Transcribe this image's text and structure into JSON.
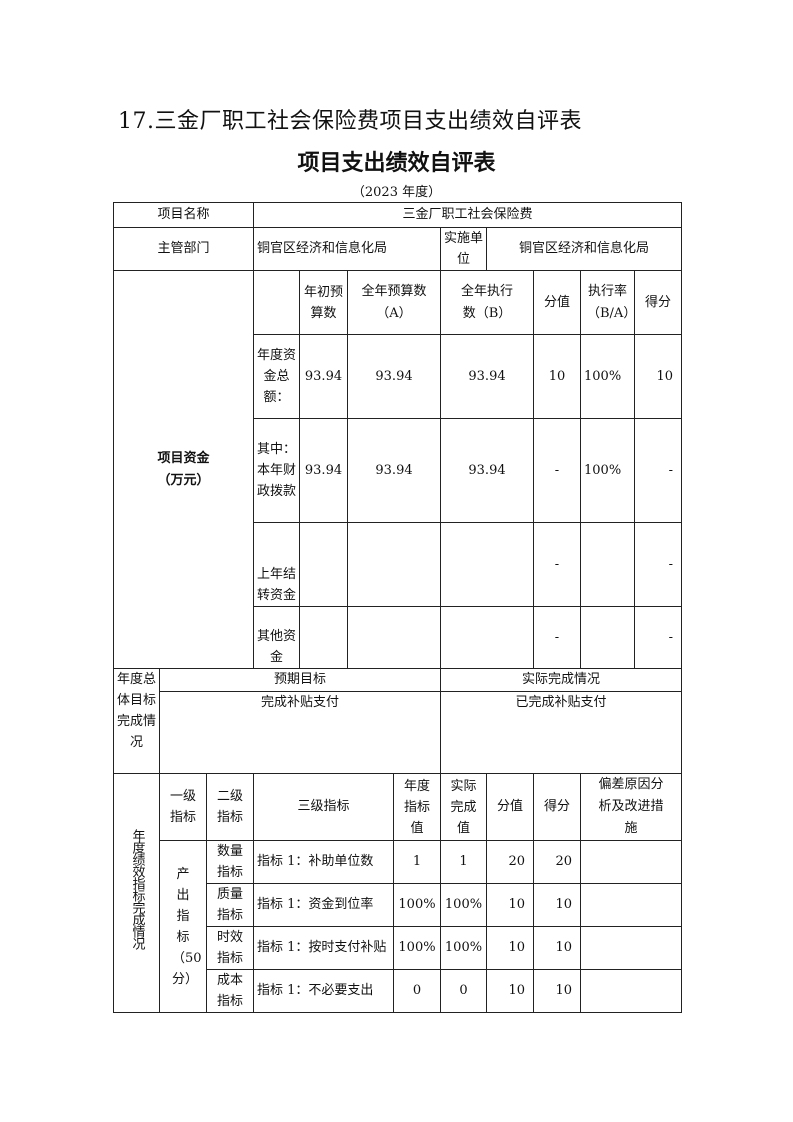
{
  "doc_title": "17.三金厂职工社会保险费项目支出绩效自评表",
  "heading": "项目支出绩效自评表",
  "year": "（2023 年度）",
  "info": {
    "project_name_label": "项目名称",
    "project_name": "三金厂职工社会保险费",
    "dept_label": "主管部门",
    "dept": "铜官区经济和信息化局",
    "impl_label": "实施单位",
    "impl": "铜官区经济和信息化局"
  },
  "funds": {
    "label": "项目资金（万元）",
    "headers": [
      "年初预算数",
      "全年预算数（A）",
      "全年执行数（B）",
      "分值",
      "执行率（B/A）",
      "得分"
    ],
    "rows": [
      {
        "label": "年度资金总额：",
        "initial": "93.94",
        "budget": "93.94",
        "executed": "93.94",
        "score_value": "10",
        "rate": "100%",
        "score": "10"
      },
      {
        "label": "其中：本年财政拨款",
        "initial": "93.94",
        "budget": "93.94",
        "executed": "93.94",
        "score_value": "-",
        "rate": "100%",
        "score": "-"
      },
      {
        "label": "上年结转资金",
        "initial": "",
        "budget": "",
        "executed": "",
        "score_value": "-",
        "rate": "",
        "score": "-"
      },
      {
        "label": "其他资金",
        "initial": "",
        "budget": "",
        "executed": "",
        "score_value": "-",
        "rate": "",
        "score": "-"
      }
    ]
  },
  "goals": {
    "label": "年度总体目标完成情况",
    "expected_label": "预期目标",
    "actual_label": "实际完成情况",
    "expected": "完成补贴支付",
    "actual": "已完成补贴支付"
  },
  "indicators": {
    "label": "年度绩效指标完成情况",
    "headers": [
      "一级指标",
      "二级指标",
      "三级指标",
      "年度指标值",
      "实际完成值",
      "分值",
      "得分",
      "偏差原因分析及改进措施"
    ],
    "level1": "产出指标（50分）",
    "rows": [
      {
        "level2": "数量指标",
        "level3": "指标 1：补助单位数",
        "target": "1",
        "actual": "1",
        "score_value": "20",
        "score": "20",
        "note": ""
      },
      {
        "level2": "质量指标",
        "level3": "指标 1：资金到位率",
        "target": "100%",
        "actual": "100%",
        "score_value": "10",
        "score": "10",
        "note": ""
      },
      {
        "level2": "时效指标",
        "level3": "指标 1：按时支付补贴",
        "target": "100%",
        "actual": "100%",
        "score_value": "10",
        "score": "10",
        "note": ""
      },
      {
        "level2": "成本指标",
        "level3": "指标 1：不必要支出",
        "target": "0",
        "actual": "0",
        "score_value": "10",
        "score": "10",
        "note": ""
      }
    ]
  }
}
